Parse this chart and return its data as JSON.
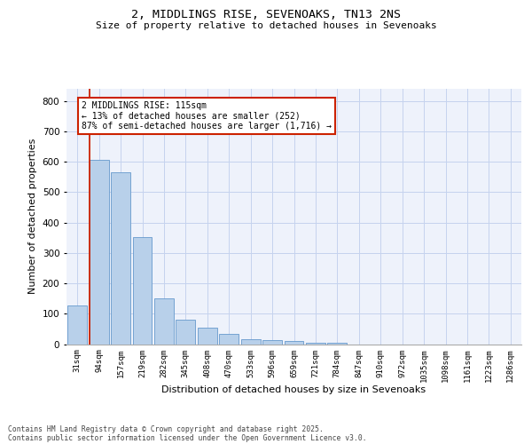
{
  "title1": "2, MIDDLINGS RISE, SEVENOAKS, TN13 2NS",
  "title2": "Size of property relative to detached houses in Sevenoaks",
  "xlabel": "Distribution of detached houses by size in Sevenoaks",
  "ylabel": "Number of detached properties",
  "categories": [
    "31sqm",
    "94sqm",
    "157sqm",
    "219sqm",
    "282sqm",
    "345sqm",
    "408sqm",
    "470sqm",
    "533sqm",
    "596sqm",
    "659sqm",
    "721sqm",
    "784sqm",
    "847sqm",
    "910sqm",
    "972sqm",
    "1035sqm",
    "1098sqm",
    "1161sqm",
    "1223sqm",
    "1286sqm"
  ],
  "values": [
    128,
    607,
    565,
    353,
    150,
    79,
    55,
    33,
    15,
    12,
    9,
    5,
    4,
    0,
    0,
    0,
    0,
    0,
    0,
    0,
    0
  ],
  "bar_color": "#b8d0ea",
  "bar_edge_color": "#6699cc",
  "bg_color": "#eef2fb",
  "grid_color": "#c5d3ee",
  "annotation_line1": "2 MIDDLINGS RISE: 115sqm",
  "annotation_line2": "← 13% of detached houses are smaller (252)",
  "annotation_line3": "87% of semi-detached houses are larger (1,716) →",
  "vline_bin_index": 1,
  "vline_color": "#cc2200",
  "ylim": [
    0,
    840
  ],
  "yticks": [
    0,
    100,
    200,
    300,
    400,
    500,
    600,
    700,
    800
  ],
  "footer_line1": "Contains HM Land Registry data © Crown copyright and database right 2025.",
  "footer_line2": "Contains public sector information licensed under the Open Government Licence v3.0.",
  "annotation_box_edgecolor": "#cc2200",
  "annotation_box_facecolor": "#ffffff",
  "title1_fontsize": 9.5,
  "title2_fontsize": 8.0,
  "ylabel_fontsize": 8.0,
  "xlabel_fontsize": 8.0,
  "tick_fontsize": 6.5,
  "ytick_fontsize": 7.5,
  "annotation_fontsize": 7.0,
  "footer_fontsize": 5.8
}
